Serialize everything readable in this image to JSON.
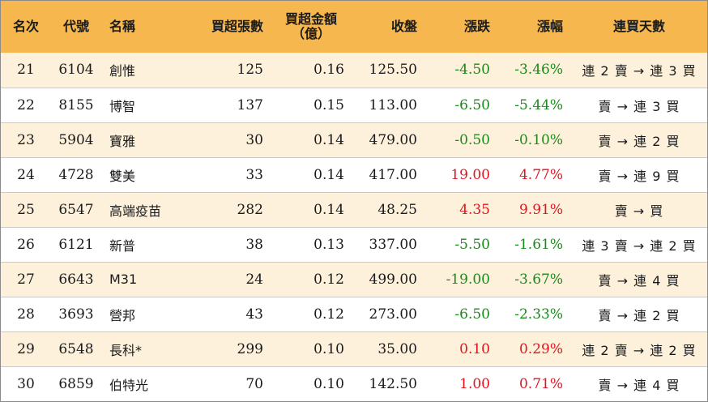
{
  "headers": {
    "rank": "名次",
    "code": "代號",
    "name": "名稱",
    "lots": "買超張數",
    "amount_line1": "買超金額",
    "amount_line2": "（億）",
    "close": "收盤",
    "change": "漲跌",
    "pct": "漲幅",
    "days": "連買天數"
  },
  "rows": [
    {
      "rank": "21",
      "code": "6104",
      "name": "創惟",
      "lots": "125",
      "amount": "0.16",
      "close": "125.50",
      "change": "-4.50",
      "pct": "-3.46%",
      "days": "連 2 賣 → 連 3 買",
      "dir": "neg"
    },
    {
      "rank": "22",
      "code": "8155",
      "name": "博智",
      "lots": "137",
      "amount": "0.15",
      "close": "113.00",
      "change": "-6.50",
      "pct": "-5.44%",
      "days": "賣 → 連 3 買",
      "dir": "neg"
    },
    {
      "rank": "23",
      "code": "5904",
      "name": "寶雅",
      "lots": "30",
      "amount": "0.14",
      "close": "479.00",
      "change": "-0.50",
      "pct": "-0.10%",
      "days": "賣 → 連 2 買",
      "dir": "neg"
    },
    {
      "rank": "24",
      "code": "4728",
      "name": "雙美",
      "lots": "33",
      "amount": "0.14",
      "close": "417.00",
      "change": "19.00",
      "pct": "4.77%",
      "days": "賣 → 連 9 買",
      "dir": "pos"
    },
    {
      "rank": "25",
      "code": "6547",
      "name": "高端疫苗",
      "lots": "282",
      "amount": "0.14",
      "close": "48.25",
      "change": "4.35",
      "pct": "9.91%",
      "days": "賣 → 買",
      "dir": "pos"
    },
    {
      "rank": "26",
      "code": "6121",
      "name": "新普",
      "lots": "38",
      "amount": "0.13",
      "close": "337.00",
      "change": "-5.50",
      "pct": "-1.61%",
      "days": "連 3 賣 → 連 2 買",
      "dir": "neg"
    },
    {
      "rank": "27",
      "code": "6643",
      "name": "M31",
      "lots": "24",
      "amount": "0.12",
      "close": "499.00",
      "change": "-19.00",
      "pct": "-3.67%",
      "days": "賣 → 連 4 買",
      "dir": "neg"
    },
    {
      "rank": "28",
      "code": "3693",
      "name": "營邦",
      "lots": "43",
      "amount": "0.12",
      "close": "273.00",
      "change": "-6.50",
      "pct": "-2.33%",
      "days": "賣 → 連 2 買",
      "dir": "neg"
    },
    {
      "rank": "29",
      "code": "6548",
      "name": "長科*",
      "lots": "299",
      "amount": "0.10",
      "close": "35.00",
      "change": "0.10",
      "pct": "0.29%",
      "days": "連 2 賣 → 連 2 買",
      "dir": "pos"
    },
    {
      "rank": "30",
      "code": "6859",
      "name": "伯特光",
      "lots": "70",
      "amount": "0.10",
      "close": "142.50",
      "change": "1.00",
      "pct": "0.71%",
      "days": "賣 → 連 4 買",
      "dir": "pos"
    }
  ],
  "colors": {
    "header_bg": "#f6b84e",
    "odd_row_bg": "#fef1dc",
    "negative": "#1a8a1a",
    "positive": "#e0141e"
  }
}
